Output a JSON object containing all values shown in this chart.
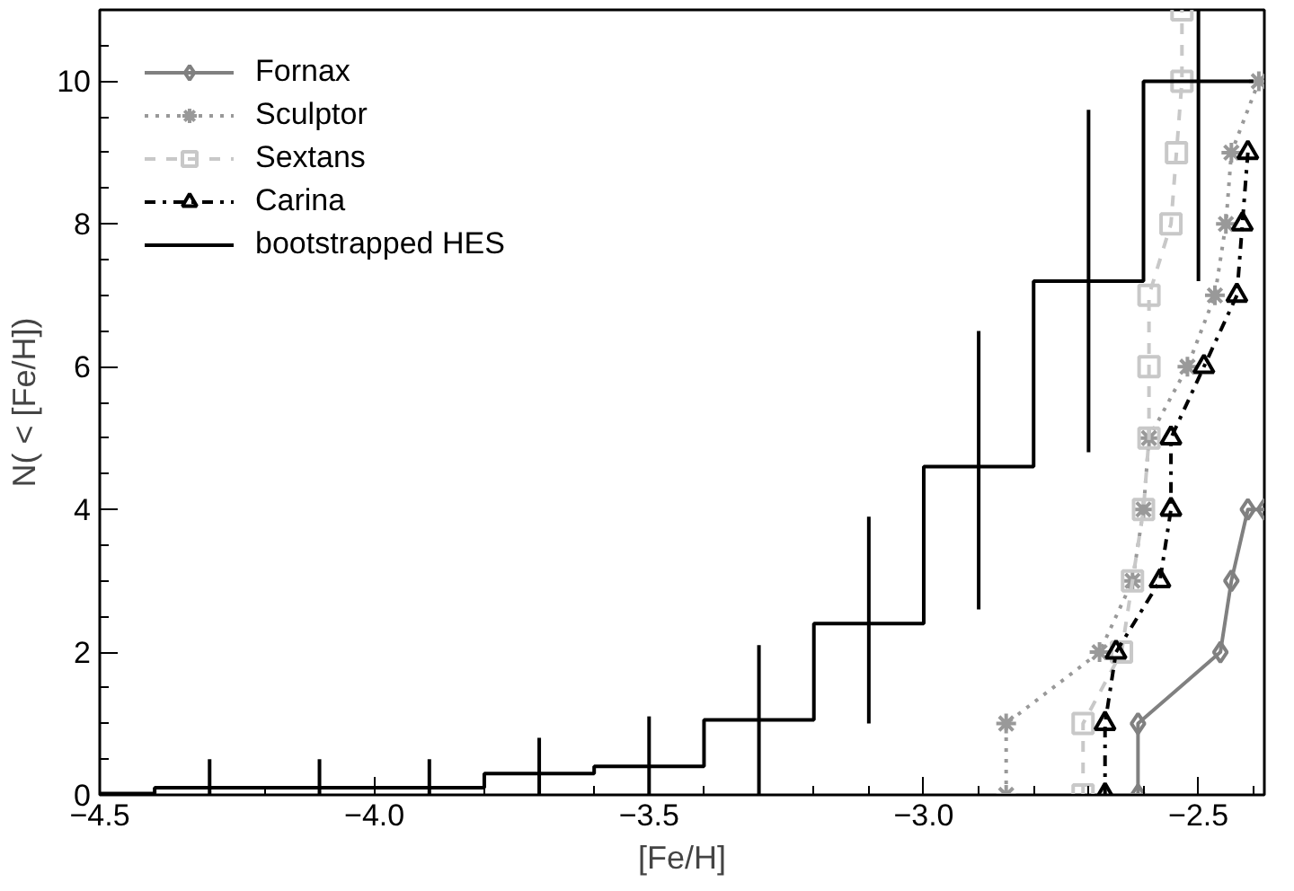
{
  "chart_data": {
    "type": "line",
    "xlabel": "[Fe/H]",
    "ylabel": "N( < [Fe/H])",
    "xlim": [
      -4.5,
      -2.38
    ],
    "ylim": [
      0,
      11
    ],
    "xticks": [
      {
        "value": -4.5,
        "label": "−4.5"
      },
      {
        "value": -4.0,
        "label": "−4.0"
      },
      {
        "value": -3.5,
        "label": "−3.5"
      },
      {
        "value": -3.0,
        "label": "−3.0"
      },
      {
        "value": -2.5,
        "label": "−2.5"
      }
    ],
    "yticks": [
      0,
      2,
      4,
      6,
      8,
      10
    ],
    "grid": false,
    "legend": "top left",
    "series": [
      {
        "name": "Fornax",
        "color": "#808080",
        "marker": "diamond",
        "line_style": "solid",
        "x": [
          -2.61,
          -2.61,
          -2.46,
          -2.44,
          -2.41,
          -2.38
        ],
        "values": [
          0,
          1,
          2,
          3,
          4,
          4
        ]
      },
      {
        "name": "Sculptor",
        "color": "#999999",
        "marker": "cross",
        "line_style": "dotted",
        "x": [
          -2.85,
          -2.85,
          -2.68,
          -2.62,
          -2.6,
          -2.59,
          -2.52,
          -2.47,
          -2.45,
          -2.44,
          -2.39
        ],
        "values": [
          0,
          1,
          2,
          3,
          4,
          5,
          6,
          7,
          8,
          9,
          10
        ]
      },
      {
        "name": "Sextans",
        "color": "#c8c8c8",
        "marker": "square",
        "line_style": "dashed",
        "x": [
          -2.71,
          -2.71,
          -2.64,
          -2.62,
          -2.6,
          -2.59,
          -2.59,
          -2.59,
          -2.55,
          -2.54,
          -2.53,
          -2.53
        ],
        "values": [
          0,
          1,
          2,
          3,
          4,
          5,
          6,
          7,
          8,
          9,
          10,
          11
        ]
      },
      {
        "name": "Carina",
        "color": "#000000",
        "marker": "triangle",
        "line_style": "dashdot",
        "x": [
          -2.67,
          -2.67,
          -2.65,
          -2.57,
          -2.55,
          -2.55,
          -2.49,
          -2.43,
          -2.42,
          -2.41
        ],
        "values": [
          0,
          1,
          2,
          3,
          4,
          5,
          6,
          7,
          8,
          9
        ]
      },
      {
        "name": "bootstrapped HES",
        "type": "step",
        "color": "#000000",
        "marker": "none",
        "line_style": "solid",
        "x": [
          -4.5,
          -4.3,
          -4.1,
          -3.9,
          -3.7,
          -3.5,
          -3.3,
          -3.1,
          -2.9,
          -2.7,
          -2.5,
          -2.4
        ],
        "values": [
          0.02,
          0.1,
          0.1,
          0.1,
          0.3,
          0.4,
          1.05,
          2.4,
          4.6,
          7.2,
          10,
          10
        ],
        "errors": [
          null,
          [
            0,
            0.5
          ],
          [
            0,
            0.5
          ],
          [
            0,
            0.5
          ],
          [
            0,
            0.8
          ],
          [
            0,
            1.1
          ],
          [
            0,
            2.1
          ],
          [
            1,
            3.9
          ],
          [
            2.6,
            6.5
          ],
          [
            4.8,
            9.6
          ],
          [
            7.2,
            11
          ],
          null
        ]
      }
    ]
  }
}
